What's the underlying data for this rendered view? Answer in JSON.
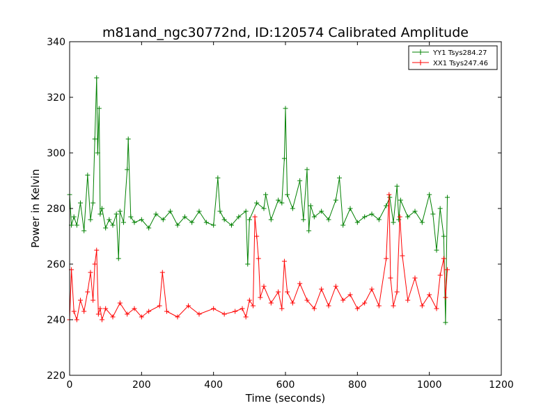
{
  "chart_data": {
    "type": "line",
    "title": "m81and_ngc30772nd, ID:120574 Calibrated Amplitude",
    "xlabel": "Time (seconds)",
    "ylabel": "Power in Kelvin",
    "xlim": [
      0,
      1200
    ],
    "ylim": [
      220,
      340
    ],
    "xticks": [
      0,
      200,
      400,
      600,
      800,
      1000,
      1200
    ],
    "yticks": [
      220,
      240,
      260,
      280,
      300,
      320,
      340
    ],
    "grid": false,
    "legend_position": "top-right",
    "marker": "+",
    "series": [
      {
        "name": "YY1 Tsys284.27",
        "color": "#008000",
        "x": [
          0,
          5,
          12,
          20,
          30,
          40,
          50,
          58,
          65,
          70,
          75,
          78,
          82,
          85,
          90,
          100,
          110,
          120,
          130,
          136,
          140,
          150,
          160,
          163,
          170,
          180,
          200,
          220,
          240,
          260,
          280,
          300,
          320,
          340,
          360,
          380,
          400,
          412,
          418,
          430,
          450,
          470,
          490,
          495,
          500,
          520,
          540,
          545,
          560,
          580,
          590,
          597,
          600,
          605,
          620,
          640,
          650,
          660,
          665,
          670,
          680,
          700,
          720,
          740,
          750,
          760,
          780,
          800,
          820,
          840,
          860,
          880,
          890,
          900,
          910,
          915,
          920,
          940,
          960,
          980,
          1000,
          1010,
          1020,
          1030,
          1040,
          1045,
          1050
        ],
        "values": [
          285,
          274,
          277,
          274,
          282,
          272,
          292,
          276,
          282,
          305,
          327,
          300,
          316,
          278,
          280,
          273,
          276,
          274,
          278,
          262,
          279,
          275,
          294,
          305,
          277,
          275,
          276,
          273,
          278,
          276,
          279,
          274,
          277,
          275,
          279,
          275,
          274,
          291,
          279,
          276,
          274,
          277,
          279,
          260,
          276,
          282,
          280,
          285,
          276,
          283,
          282,
          298,
          316,
          285,
          280,
          290,
          276,
          294,
          272,
          281,
          277,
          279,
          276,
          283,
          291,
          274,
          280,
          275,
          277,
          278,
          276,
          281,
          284,
          275,
          288,
          276,
          283,
          277,
          279,
          275,
          285,
          278,
          265,
          280,
          270,
          239,
          284
        ]
      },
      {
        "name": "XX1 Tsys247.46",
        "color": "#ff0000",
        "x": [
          0,
          5,
          12,
          20,
          30,
          40,
          50,
          58,
          65,
          70,
          75,
          80,
          85,
          90,
          100,
          120,
          140,
          160,
          180,
          200,
          220,
          250,
          258,
          270,
          300,
          330,
          360,
          400,
          430,
          460,
          480,
          490,
          500,
          510,
          515,
          520,
          525,
          530,
          540,
          560,
          580,
          590,
          597,
          605,
          620,
          640,
          660,
          680,
          700,
          720,
          740,
          760,
          780,
          800,
          820,
          840,
          860,
          880,
          888,
          892,
          900,
          910,
          918,
          925,
          940,
          960,
          980,
          1000,
          1020,
          1030,
          1040,
          1045,
          1050
        ],
        "values": [
          240,
          258,
          243,
          240,
          247,
          243,
          250,
          257,
          247,
          260,
          265,
          242,
          244,
          240,
          244,
          241,
          246,
          242,
          244,
          241,
          243,
          245,
          257,
          243,
          241,
          245,
          242,
          244,
          242,
          243,
          244,
          241,
          247,
          245,
          277,
          270,
          262,
          248,
          252,
          246,
          250,
          244,
          261,
          250,
          246,
          253,
          247,
          244,
          251,
          245,
          252,
          247,
          249,
          244,
          246,
          251,
          245,
          262,
          285,
          255,
          245,
          250,
          277,
          263,
          247,
          255,
          245,
          249,
          244,
          256,
          262,
          248,
          258
        ]
      }
    ]
  }
}
